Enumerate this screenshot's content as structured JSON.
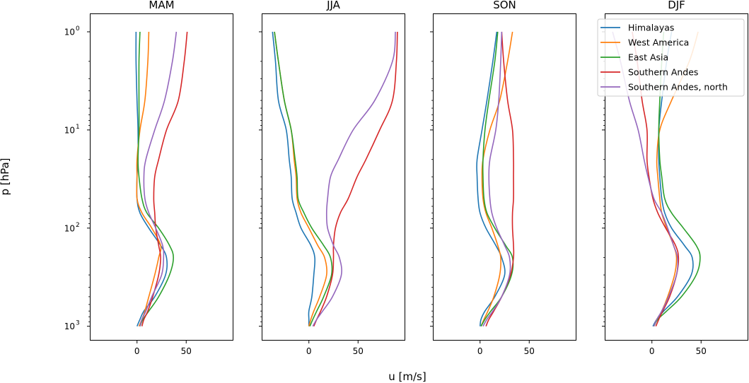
{
  "figure": {
    "xlabel": "u [m/s]",
    "ylabel": "p [hPa]"
  },
  "chart_data": {
    "type": "line",
    "y_scale": "log",
    "y_inverted": true,
    "ylim": [
      1400,
      0.65
    ],
    "xlim": [
      -48,
      98
    ],
    "x_ticks": [
      0,
      50
    ],
    "x_tick_labels": [
      "0",
      "50"
    ],
    "y_ticks": [
      1,
      10,
      100,
      1000
    ],
    "y_tick_labels": [
      "10",
      "10",
      "10",
      "10"
    ],
    "y_tick_exponents": [
      "0",
      "1",
      "2",
      "3"
    ],
    "legend": {
      "placement": "top-right",
      "panel": 3,
      "entries": [
        "Himalayas",
        "West America",
        "East Asia",
        "Southern Andes",
        "Southern Andes, north"
      ]
    },
    "colors": {
      "Himalayas": "#1f77b4",
      "West America": "#ff7f0e",
      "East Asia": "#2ca02c",
      "Southern Andes": "#d62728",
      "Southern Andes, north": "#9467bd"
    },
    "pressure_levels": [
      1,
      2,
      5,
      10,
      20,
      30,
      50,
      70,
      100,
      150,
      200,
      300,
      500,
      700,
      850,
      1000
    ],
    "panels": [
      {
        "title": "MAM",
        "series": [
          {
            "name": "Himalayas",
            "values": [
              -1,
              -1,
              0,
              1,
              1,
              0,
              0,
              3,
              12,
              24,
              30,
              29,
              18,
              7,
              3,
              0
            ]
          },
          {
            "name": "West America",
            "values": [
              12,
              11,
              8,
              3,
              0,
              0,
              0,
              5,
              15,
              24,
              22,
              18,
              12,
              8,
              5,
              2
            ]
          },
          {
            "name": "East Asia",
            "values": [
              3,
              2,
              2,
              2,
              1,
              2,
              5,
              10,
              22,
              33,
              37,
              33,
              22,
              12,
              6,
              3
            ]
          },
          {
            "name": "Southern Andes",
            "values": [
              51,
              48,
              42,
              30,
              22,
              18,
              17,
              18,
              19,
              22,
              24,
              22,
              16,
              11,
              7,
              5
            ]
          },
          {
            "name": "Southern Andes, north",
            "values": [
              40,
              36,
              28,
              18,
              9,
              7,
              8,
              12,
              19,
              26,
              27,
              25,
              15,
              9,
              5,
              3
            ]
          }
        ]
      },
      {
        "title": "JJA",
        "series": [
          {
            "name": "Himalayas",
            "values": [
              -37,
              -34,
              -31,
              -23,
              -20,
              -18,
              -17,
              -13,
              -8,
              2,
              6,
              5,
              3,
              0,
              0,
              0
            ]
          },
          {
            "name": "West America",
            "values": [
              -35,
              -31,
              -25,
              -18,
              -15,
              -13,
              -12,
              -8,
              0,
              9,
              16,
              18,
              11,
              5,
              2,
              0
            ]
          },
          {
            "name": "East Asia",
            "values": [
              -35,
              -31,
              -25,
              -18,
              -14,
              -12,
              -11,
              -5,
              3,
              15,
              22,
              23,
              15,
              8,
              4,
              1
            ]
          },
          {
            "name": "Southern Andes",
            "values": [
              90,
              89,
              85,
              72,
              58,
              49,
              40,
              32,
              27,
              25,
              25,
              24,
              18,
              12,
              8,
              5
            ]
          },
          {
            "name": "Southern Andes, north",
            "values": [
              88,
              85,
              67,
              45,
              30,
              22,
              19,
              18,
              19,
              25,
              31,
              33,
              24,
              14,
              8,
              4
            ]
          }
        ]
      },
      {
        "title": "SON",
        "series": [
          {
            "name": "Himalayas",
            "values": [
              17,
              13,
              7,
              2,
              -3,
              -3,
              -2,
              0,
              6,
              16,
              22,
              25,
              15,
              5,
              1,
              0
            ]
          },
          {
            "name": "West America",
            "values": [
              33,
              28,
              20,
              10,
              3,
              2,
              3,
              6,
              12,
              18,
              21,
              20,
              14,
              8,
              4,
              1
            ]
          },
          {
            "name": "East Asia",
            "values": [
              18,
              15,
              9,
              5,
              3,
              3,
              4,
              7,
              15,
              26,
              33,
              32,
              22,
              11,
              5,
              1
            ]
          },
          {
            "name": "Southern Andes",
            "values": [
              22,
              24,
              28,
              33,
              34,
              34,
              34,
              33,
              33,
              34,
              34,
              31,
              22,
              14,
              9,
              6
            ]
          },
          {
            "name": "Southern Andes, north",
            "values": [
              22,
              21,
              19,
              16,
              10,
              9,
              10,
              12,
              17,
              25,
              30,
              30,
              22,
              13,
              7,
              3
            ]
          }
        ]
      },
      {
        "title": "DJF",
        "series": [
          {
            "name": "Himalayas",
            "values": [
              20,
              15,
              10,
              7,
              7,
              8,
              10,
              13,
              20,
              33,
              41,
              40,
              26,
              12,
              5,
              1
            ]
          },
          {
            "name": "West America",
            "values": [
              47,
              38,
              20,
              8,
              5,
              6,
              8,
              10,
              15,
              22,
              25,
              23,
              16,
              10,
              5,
              2
            ]
          },
          {
            "name": "East Asia",
            "values": [
              12,
              10,
              8,
              7,
              8,
              10,
              13,
              20,
              32,
              45,
              49,
              45,
              30,
              15,
              6,
              2
            ]
          },
          {
            "name": "Southern Andes",
            "values": [
              -20,
              -15,
              -10,
              -5,
              -5,
              -3,
              1,
              6,
              14,
              24,
              27,
              25,
              18,
              11,
              7,
              4
            ]
          },
          {
            "name": "Southern Andes, north",
            "values": [
              -40,
              -32,
              -23,
              -14,
              -8,
              -4,
              2,
              10,
              16,
              22,
              26,
              25,
              17,
              10,
              5,
              2
            ]
          }
        ]
      }
    ]
  }
}
